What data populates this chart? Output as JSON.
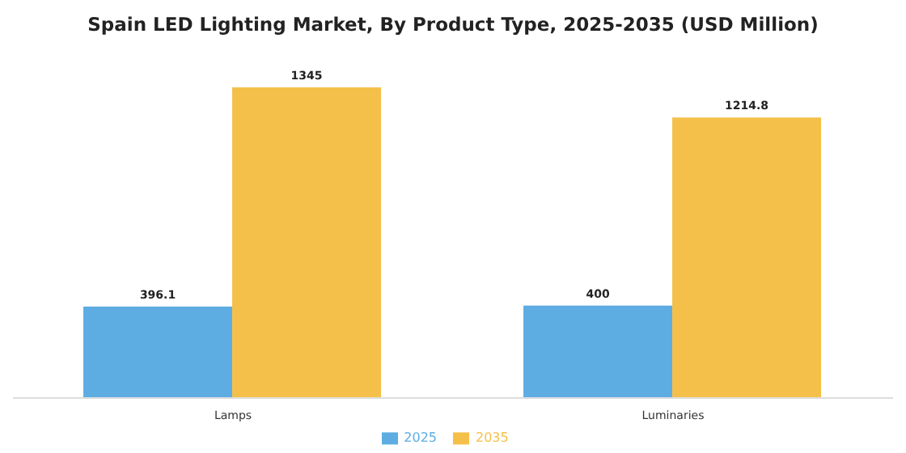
{
  "chart_data": {
    "type": "bar",
    "title": "Spain LED Lighting Market, By Product Type, 2025-2035 (USD Million)",
    "categories": [
      "Lamps",
      "Luminaries"
    ],
    "series": [
      {
        "name": "2025",
        "color": "#5dade2",
        "values": [
          396.1,
          400
        ]
      },
      {
        "name": "2035",
        "color": "#f5c04a",
        "values": [
          1345,
          1214.8
        ]
      }
    ],
    "data_labels": true,
    "legend": "bottom",
    "grid": false
  }
}
